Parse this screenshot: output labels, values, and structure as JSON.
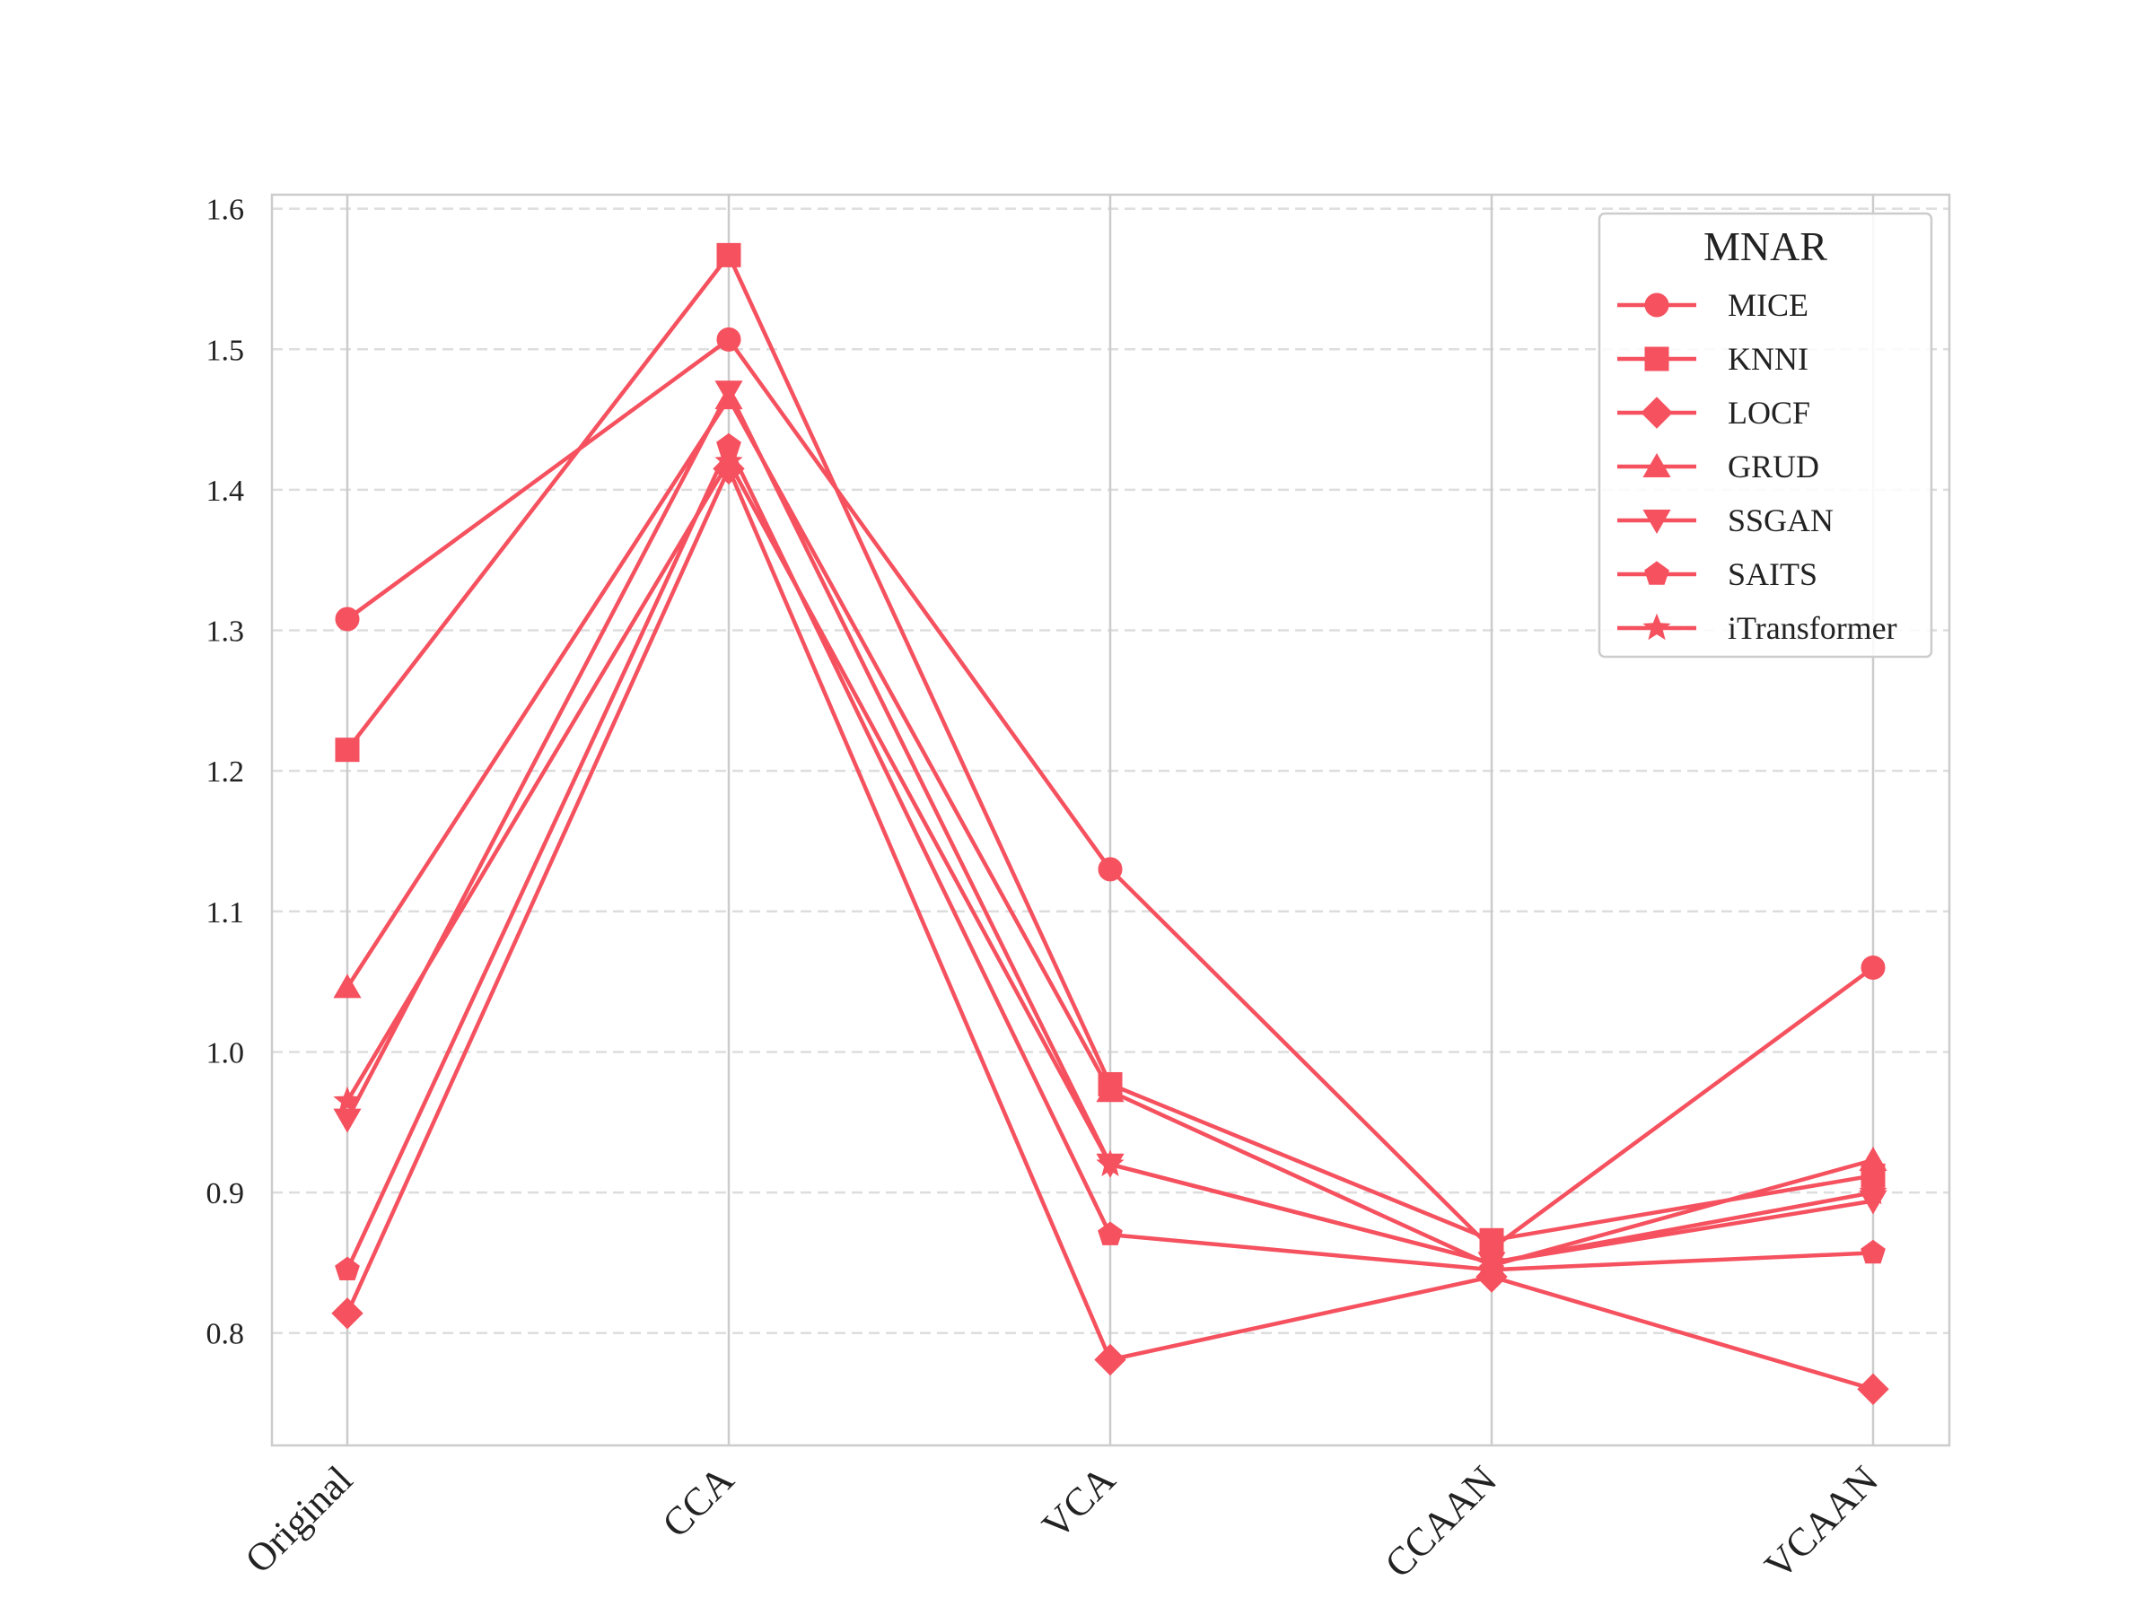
{
  "chart_data": {
    "type": "line",
    "title": "",
    "xlabel": "",
    "ylabel": "",
    "categories": [
      "Original",
      "CCA",
      "VCA",
      "CCAAN",
      "VCAAN"
    ],
    "ylim": [
      0.72,
      1.61
    ],
    "yticks": [
      0.8,
      0.9,
      1.0,
      1.1,
      1.2,
      1.3,
      1.4,
      1.5,
      1.6
    ],
    "ytick_labels": [
      "0.8",
      "0.9",
      "1.0",
      "1.1",
      "1.2",
      "1.3",
      "1.4",
      "1.5",
      "1.6"
    ],
    "grid": true,
    "legend": {
      "title": "MNAR",
      "position": "top-right"
    },
    "color": "#f5515f",
    "series": [
      {
        "name": "MICE",
        "marker": "circle",
        "values": [
          1.308,
          1.507,
          1.13,
          0.86,
          1.06
        ]
      },
      {
        "name": "KNNI",
        "marker": "square",
        "values": [
          1.215,
          1.567,
          0.977,
          0.866,
          0.912
        ]
      },
      {
        "name": "LOCF",
        "marker": "diamond",
        "values": [
          0.814,
          1.415,
          0.781,
          0.84,
          0.76
        ]
      },
      {
        "name": "GRUD",
        "marker": "triangle-up",
        "values": [
          1.046,
          1.465,
          0.972,
          0.848,
          0.923
        ]
      },
      {
        "name": "SSGAN",
        "marker": "triangle-down",
        "values": [
          0.952,
          1.47,
          0.92,
          0.85,
          0.894
        ]
      },
      {
        "name": "SAITS",
        "marker": "pentagon",
        "values": [
          0.845,
          1.431,
          0.87,
          0.845,
          0.857
        ]
      },
      {
        "name": "iTransformer",
        "marker": "star",
        "values": [
          0.965,
          1.42,
          0.92,
          0.85,
          0.9
        ]
      }
    ]
  }
}
